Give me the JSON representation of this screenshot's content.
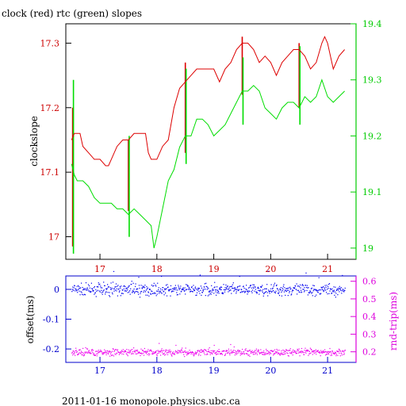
{
  "chart_data": [
    {
      "type": "line",
      "title": "clock (red) rtc (green) slopes",
      "xlabel": "",
      "ylabel": "clockslope",
      "xlim": [
        16.4,
        21.5
      ],
      "ylim": [
        16.965,
        17.33
      ],
      "y2lim": [
        18.98,
        19.4
      ],
      "x_ticks": [
        17,
        18,
        19,
        20,
        21
      ],
      "y_ticks": [
        17,
        17.1,
        17.2,
        17.3
      ],
      "y_tick_labels": [
        "17",
        "17.1",
        "17.2",
        "17.3"
      ],
      "y2_ticks": [
        19,
        19.1,
        19.2,
        19.3,
        19.4
      ],
      "y2_tick_labels": [
        "19",
        "19.1",
        "19.2",
        "19.3",
        "19.4"
      ],
      "colors": {
        "axis_left": "#cc0000",
        "axis_right": "#00cc00",
        "frame": "#000000"
      },
      "series": [
        {
          "name": "clock",
          "color": "#dd0000",
          "axis": "left",
          "points": [
            [
              16.5,
              17.15
            ],
            [
              16.55,
              17.16
            ],
            [
              16.6,
              17.16
            ],
            [
              16.65,
              17.16
            ],
            [
              16.7,
              17.14
            ],
            [
              16.8,
              17.13
            ],
            [
              16.9,
              17.12
            ],
            [
              17.0,
              17.12
            ],
            [
              17.1,
              17.11
            ],
            [
              17.15,
              17.11
            ],
            [
              17.2,
              17.12
            ],
            [
              17.3,
              17.14
            ],
            [
              17.4,
              17.15
            ],
            [
              17.5,
              17.15
            ],
            [
              17.6,
              17.16
            ],
            [
              17.7,
              17.16
            ],
            [
              17.8,
              17.16
            ],
            [
              17.85,
              17.13
            ],
            [
              17.9,
              17.12
            ],
            [
              18.0,
              17.12
            ],
            [
              18.1,
              17.14
            ],
            [
              18.2,
              17.15
            ],
            [
              18.3,
              17.2
            ],
            [
              18.4,
              17.23
            ],
            [
              18.5,
              17.24
            ],
            [
              18.6,
              17.25
            ],
            [
              18.7,
              17.26
            ],
            [
              18.8,
              17.26
            ],
            [
              18.9,
              17.26
            ],
            [
              19.0,
              17.26
            ],
            [
              19.1,
              17.24
            ],
            [
              19.2,
              17.26
            ],
            [
              19.3,
              17.27
            ],
            [
              19.4,
              17.29
            ],
            [
              19.5,
              17.3
            ],
            [
              19.6,
              17.3
            ],
            [
              19.7,
              17.29
            ],
            [
              19.8,
              17.27
            ],
            [
              19.9,
              17.28
            ],
            [
              20.0,
              17.27
            ],
            [
              20.1,
              17.25
            ],
            [
              20.2,
              17.27
            ],
            [
              20.3,
              17.28
            ],
            [
              20.4,
              17.29
            ],
            [
              20.5,
              17.29
            ],
            [
              20.6,
              17.28
            ],
            [
              20.7,
              17.26
            ],
            [
              20.8,
              17.27
            ],
            [
              20.9,
              17.3
            ],
            [
              20.95,
              17.31
            ],
            [
              21.0,
              17.3
            ],
            [
              21.1,
              17.26
            ],
            [
              21.2,
              17.28
            ],
            [
              21.3,
              17.29
            ]
          ],
          "spikes": [
            {
              "x": 16.52,
              "low": 16.985,
              "high": 17.2
            },
            {
              "x": 17.5,
              "low": 17.04,
              "high": 17.15
            },
            {
              "x": 18.5,
              "low": 17.13,
              "high": 17.27
            },
            {
              "x": 19.5,
              "low": 17.22,
              "high": 17.31
            },
            {
              "x": 20.5,
              "low": 17.2,
              "high": 17.3
            }
          ]
        },
        {
          "name": "rtc",
          "color": "#00dd00",
          "axis": "right",
          "points": [
            [
              16.5,
              19.15
            ],
            [
              16.55,
              19.13
            ],
            [
              16.6,
              19.12
            ],
            [
              16.7,
              19.12
            ],
            [
              16.8,
              19.11
            ],
            [
              16.9,
              19.09
            ],
            [
              17.0,
              19.08
            ],
            [
              17.1,
              19.08
            ],
            [
              17.2,
              19.08
            ],
            [
              17.3,
              19.07
            ],
            [
              17.4,
              19.07
            ],
            [
              17.5,
              19.06
            ],
            [
              17.6,
              19.07
            ],
            [
              17.7,
              19.06
            ],
            [
              17.8,
              19.05
            ],
            [
              17.9,
              19.04
            ],
            [
              17.95,
              19.0
            ],
            [
              18.0,
              19.02
            ],
            [
              18.1,
              19.07
            ],
            [
              18.2,
              19.12
            ],
            [
              18.3,
              19.14
            ],
            [
              18.4,
              19.18
            ],
            [
              18.5,
              19.2
            ],
            [
              18.6,
              19.2
            ],
            [
              18.7,
              19.23
            ],
            [
              18.8,
              19.23
            ],
            [
              18.9,
              19.22
            ],
            [
              19.0,
              19.2
            ],
            [
              19.1,
              19.21
            ],
            [
              19.2,
              19.22
            ],
            [
              19.3,
              19.24
            ],
            [
              19.4,
              19.26
            ],
            [
              19.5,
              19.28
            ],
            [
              19.6,
              19.28
            ],
            [
              19.7,
              19.29
            ],
            [
              19.8,
              19.28
            ],
            [
              19.9,
              19.25
            ],
            [
              20.0,
              19.24
            ],
            [
              20.1,
              19.23
            ],
            [
              20.2,
              19.25
            ],
            [
              20.3,
              19.26
            ],
            [
              20.4,
              19.26
            ],
            [
              20.5,
              19.25
            ],
            [
              20.6,
              19.27
            ],
            [
              20.7,
              19.26
            ],
            [
              20.8,
              19.27
            ],
            [
              20.9,
              19.3
            ],
            [
              21.0,
              19.27
            ],
            [
              21.1,
              19.26
            ],
            [
              21.2,
              19.27
            ],
            [
              21.3,
              19.28
            ]
          ],
          "spikes": [
            {
              "x": 16.52,
              "low": 18.99,
              "high": 19.3
            },
            {
              "x": 17.5,
              "low": 19.02,
              "high": 19.2
            },
            {
              "x": 18.5,
              "low": 19.15,
              "high": 19.32
            },
            {
              "x": 19.5,
              "low": 19.22,
              "high": 19.34
            },
            {
              "x": 20.5,
              "low": 19.22,
              "high": 19.36
            }
          ]
        }
      ]
    },
    {
      "type": "scatter",
      "title": "",
      "xlabel": "",
      "ylabel": "offset(ms)",
      "y2label": "rnd-trip(ms)",
      "xlim": [
        16.4,
        21.5
      ],
      "ylim": [
        -0.245,
        0.045
      ],
      "y2lim": [
        0.14,
        0.63
      ],
      "x_ticks": [
        17,
        18,
        19,
        20,
        21
      ],
      "y_ticks": [
        0,
        -0.1,
        -0.2
      ],
      "y_tick_labels": [
        "0",
        "-0.1",
        "-0.2"
      ],
      "y2_ticks": [
        0.2,
        0.3,
        0.4,
        0.5,
        0.6
      ],
      "y2_tick_labels": [
        "0.2",
        "0.3",
        "0.4",
        "0.5",
        "0.6"
      ],
      "colors": {
        "axis_left": "#0000cc",
        "axis_right": "#dd00dd"
      },
      "series": [
        {
          "name": "offset",
          "color": "#0000ee",
          "axis": "left",
          "x_range": [
            16.5,
            21.3
          ],
          "center": 0.0,
          "spread": 0.012
        },
        {
          "name": "rnd-trip",
          "color": "#ee00ee",
          "axis": "right",
          "x_range": [
            16.5,
            21.3
          ],
          "center": 0.2,
          "spread": 0.012
        }
      ]
    }
  ],
  "footer": "2011-01-16 monopole.physics.ubc.ca"
}
